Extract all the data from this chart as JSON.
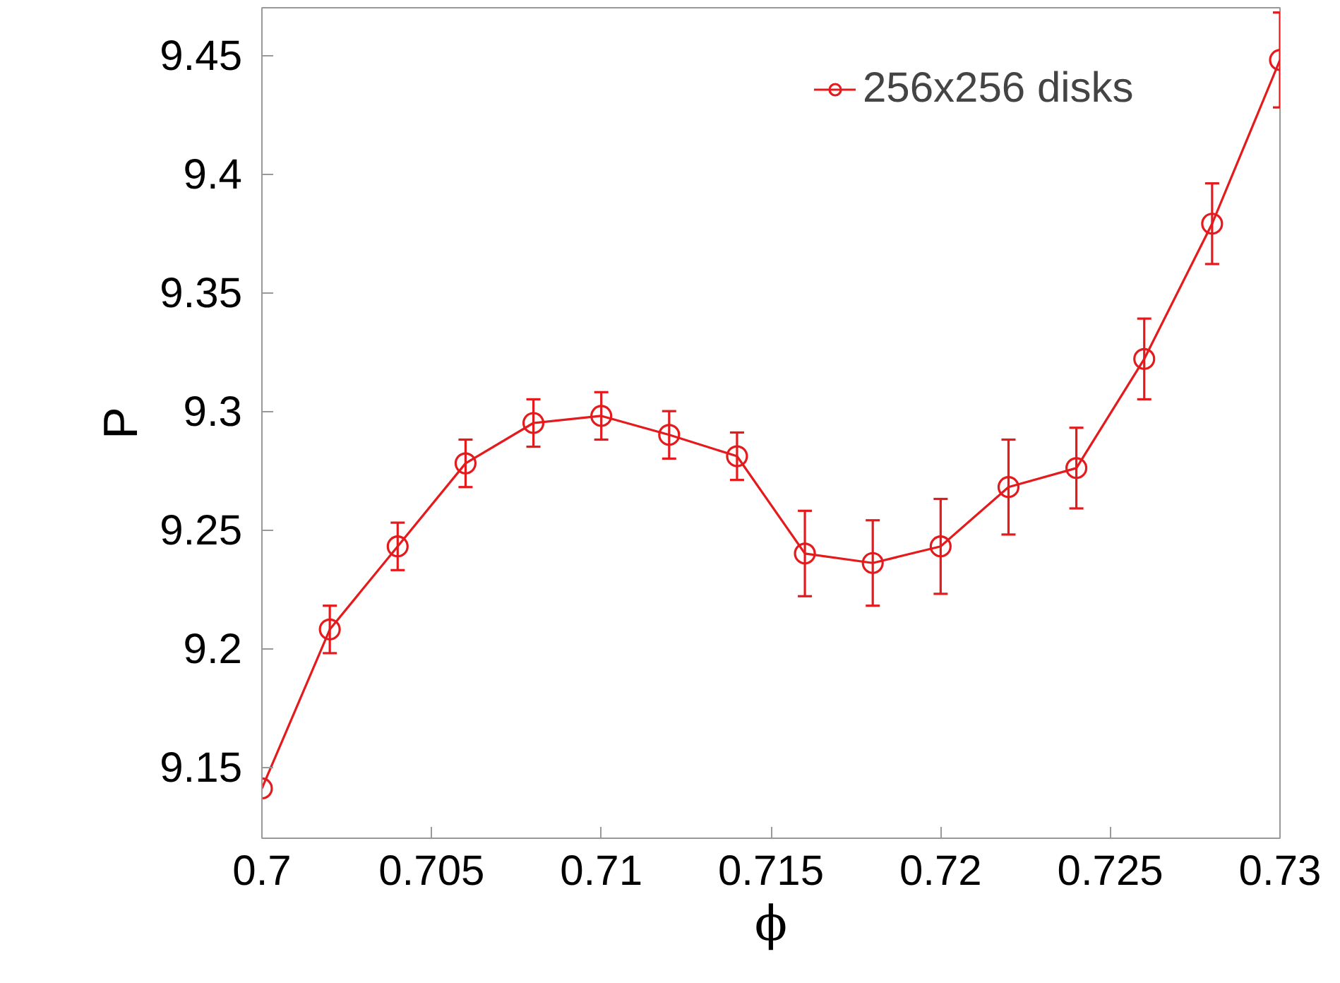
{
  "chart_data": {
    "type": "line",
    "xlabel": "ϕ",
    "ylabel": "P",
    "x": [
      0.7,
      0.702,
      0.704,
      0.706,
      0.708,
      0.71,
      0.712,
      0.714,
      0.716,
      0.718,
      0.72,
      0.722,
      0.724,
      0.726,
      0.728,
      0.73
    ],
    "series": [
      {
        "name": "256x256 disks",
        "color": "#e41a1c",
        "values": [
          9.141,
          9.208,
          9.243,
          9.278,
          9.295,
          9.298,
          9.29,
          9.281,
          9.24,
          9.236,
          9.243,
          9.268,
          9.276,
          9.322,
          9.379,
          9.448
        ],
        "errors": [
          null,
          0.01,
          0.01,
          0.01,
          0.01,
          0.01,
          0.01,
          0.01,
          0.018,
          0.018,
          0.02,
          0.02,
          0.017,
          0.017,
          0.017,
          0.02
        ]
      }
    ],
    "xlim": [
      0.7,
      0.73
    ],
    "ylim": [
      9.12,
      9.47
    ],
    "xticks": [
      0.7,
      0.705,
      0.71,
      0.715,
      0.72,
      0.725,
      0.73
    ],
    "yticks": [
      9.15,
      9.2,
      9.25,
      9.3,
      9.35,
      9.4,
      9.45
    ],
    "grid": false,
    "legend": "top right",
    "marker": "circle",
    "line_style": "solid"
  }
}
